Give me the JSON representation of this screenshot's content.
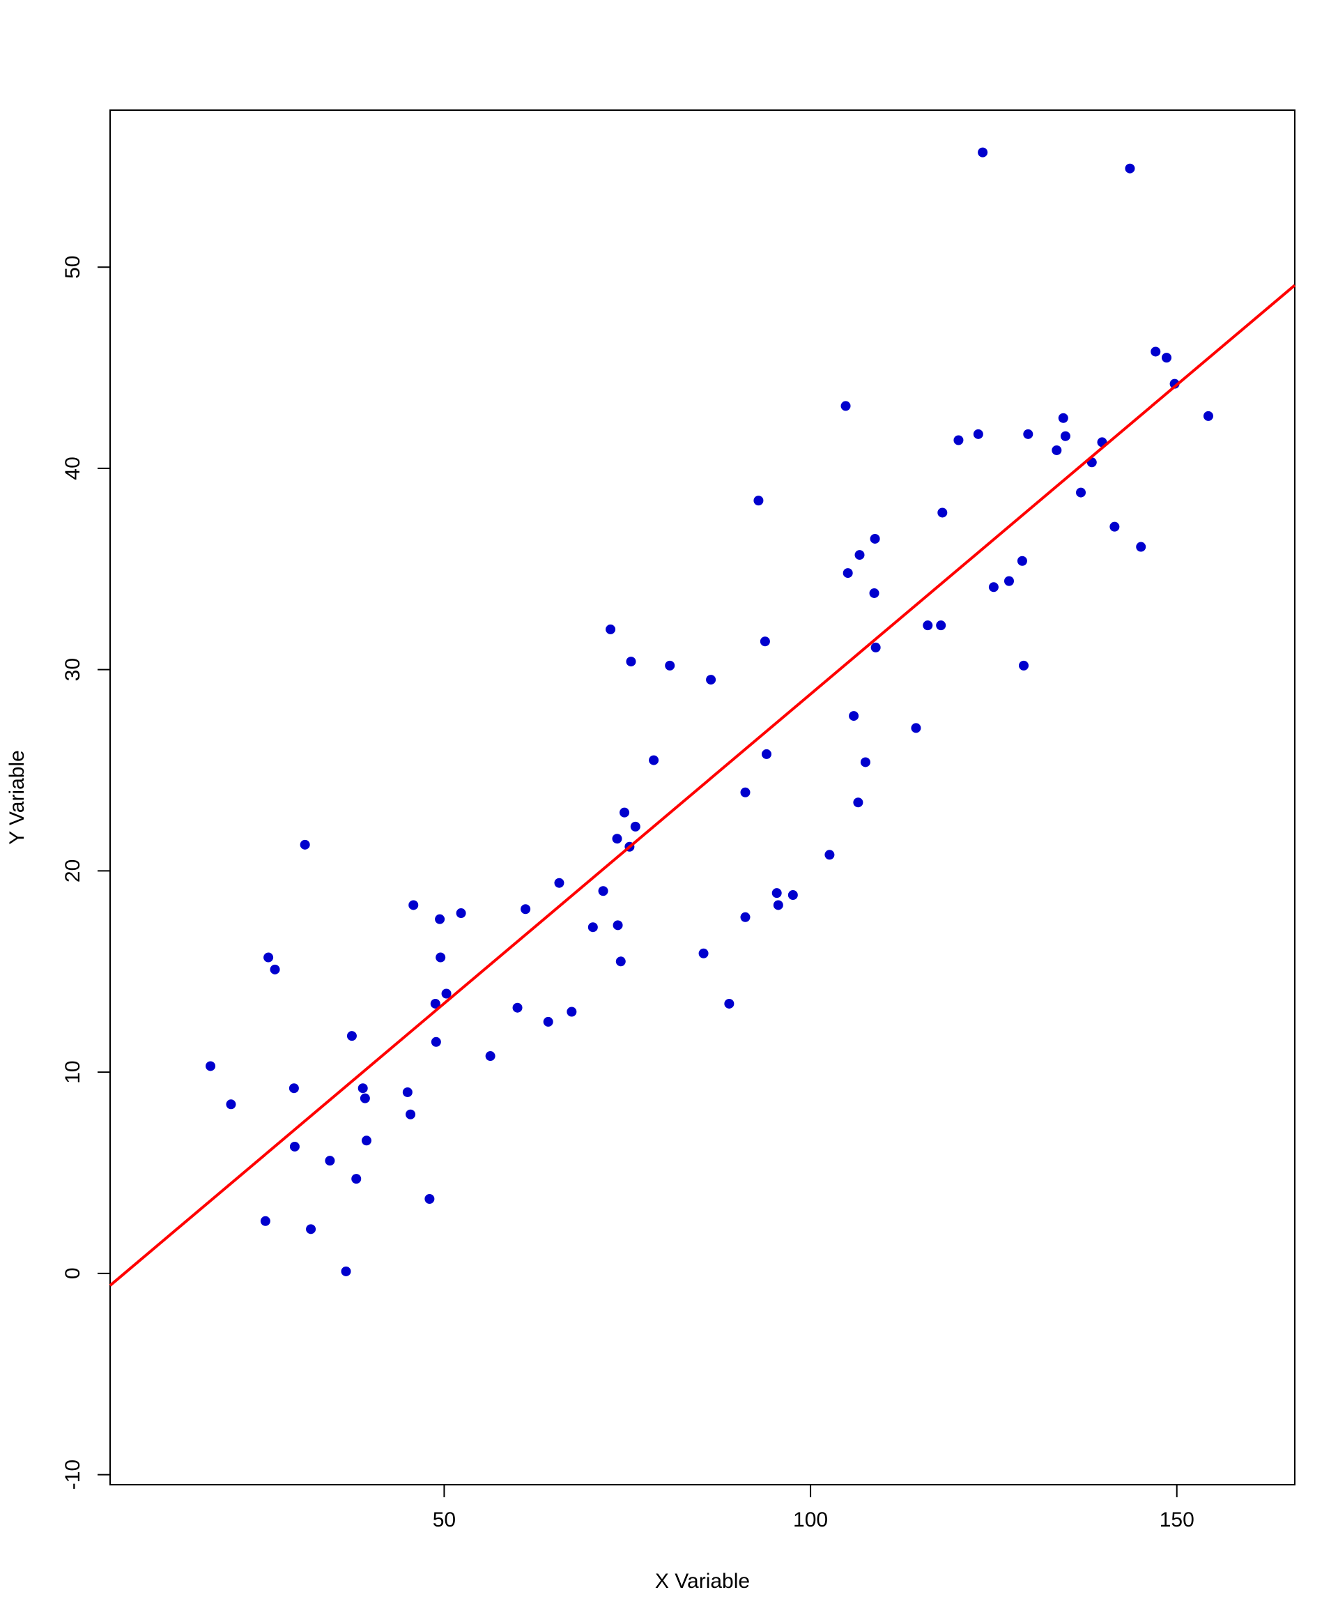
{
  "chart_data": {
    "type": "scatter",
    "title": "",
    "xlabel": "X Variable",
    "ylabel": "Y Variable",
    "xlim": [
      4.4,
      166.1
    ],
    "ylim": [
      -10.5,
      57.8
    ],
    "xticks": [
      50,
      100,
      150
    ],
    "yticks": [
      -10,
      0,
      10,
      20,
      30,
      40,
      50
    ],
    "grid": false,
    "legend": "none",
    "colors": {
      "points": "#0000CD",
      "line": "#FF0000",
      "axis": "#000000"
    },
    "regression_line": {
      "x": [
        4.4,
        166.1
      ],
      "y": [
        -0.6,
        49.1
      ]
    },
    "points": {
      "x": [
        18.1,
        20.9,
        25.6,
        26.0,
        26.9,
        29.5,
        29.6,
        31.0,
        31.8,
        34.4,
        36.6,
        37.4,
        38.0,
        38.9,
        39.2,
        39.4,
        45.0,
        45.4,
        45.8,
        48.0,
        48.8,
        48.9,
        49.4,
        49.5,
        50.3,
        52.3,
        56.3,
        60.0,
        61.1,
        64.2,
        65.7,
        67.4,
        70.3,
        71.7,
        72.7,
        73.6,
        73.7,
        74.1,
        74.6,
        75.3,
        75.5,
        76.1,
        78.6,
        80.8,
        85.4,
        86.4,
        88.9,
        91.1,
        91.1,
        92.9,
        93.8,
        94.0,
        95.4,
        95.6,
        97.6,
        102.6,
        104.8,
        105.1,
        105.9,
        106.5,
        106.7,
        107.5,
        108.7,
        108.8,
        108.9,
        114.4,
        116.0,
        117.8,
        118.0,
        120.2,
        122.9,
        123.5,
        125.0,
        127.1,
        128.9,
        129.1,
        129.7,
        133.6,
        134.5,
        134.8,
        136.9,
        138.4,
        139.8,
        141.5,
        143.6,
        145.1,
        147.1,
        148.6,
        149.7,
        154.3
      ],
      "y": [
        10.3,
        8.4,
        2.6,
        15.7,
        15.1,
        9.2,
        6.3,
        21.3,
        2.2,
        5.6,
        0.1,
        11.8,
        4.7,
        9.2,
        8.7,
        6.6,
        9.0,
        7.9,
        18.3,
        3.7,
        13.4,
        11.5,
        17.6,
        15.7,
        13.9,
        17.9,
        10.8,
        13.2,
        18.1,
        12.5,
        19.4,
        13.0,
        17.2,
        19.0,
        32.0,
        21.6,
        17.3,
        15.5,
        22.9,
        21.2,
        30.4,
        22.2,
        25.5,
        30.2,
        15.9,
        29.5,
        13.4,
        17.7,
        23.9,
        38.4,
        31.4,
        25.8,
        18.9,
        18.3,
        18.8,
        20.8,
        43.1,
        34.8,
        27.7,
        23.4,
        35.7,
        25.4,
        33.8,
        36.5,
        31.1,
        27.1,
        32.2,
        32.2,
        37.8,
        41.4,
        41.7,
        55.7,
        34.1,
        34.4,
        35.4,
        30.2,
        41.7,
        40.9,
        42.5,
        41.6,
        38.8,
        40.3,
        41.3,
        37.1,
        54.9,
        36.1,
        45.8,
        45.5,
        44.2,
        42.6
      ]
    }
  }
}
